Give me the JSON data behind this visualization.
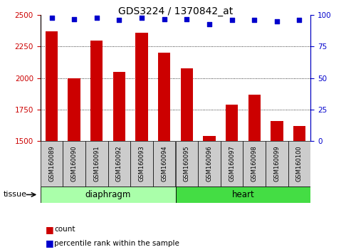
{
  "title": "GDS3224 / 1370842_at",
  "categories": [
    "GSM160089",
    "GSM160090",
    "GSM160091",
    "GSM160092",
    "GSM160093",
    "GSM160094",
    "GSM160095",
    "GSM160096",
    "GSM160097",
    "GSM160098",
    "GSM160099",
    "GSM160100"
  ],
  "bar_values": [
    2370,
    2000,
    2300,
    2050,
    2360,
    2200,
    2080,
    1540,
    1790,
    1870,
    1660,
    1620
  ],
  "percentile_values": [
    98,
    97,
    98,
    96,
    98,
    97,
    97,
    93,
    96,
    96,
    95,
    96
  ],
  "bar_color": "#cc0000",
  "dot_color": "#0000cc",
  "ylim_left": [
    1500,
    2500
  ],
  "ylim_right": [
    0,
    100
  ],
  "yticks_left": [
    1500,
    1750,
    2000,
    2250,
    2500
  ],
  "yticks_right": [
    0,
    25,
    50,
    75,
    100
  ],
  "gridlines_at": [
    1750,
    2000,
    2250
  ],
  "tissue_groups": [
    {
      "label": "diaphragm",
      "start": 0,
      "end": 6,
      "color": "#aaffaa"
    },
    {
      "label": "heart",
      "start": 6,
      "end": 12,
      "color": "#44dd44"
    }
  ],
  "legend_items": [
    {
      "label": "count",
      "color": "#cc0000"
    },
    {
      "label": "percentile rank within the sample",
      "color": "#0000cc"
    }
  ],
  "tissue_label": "tissue",
  "bar_width": 0.55,
  "axis_color_left": "#cc0000",
  "axis_color_right": "#0000cc",
  "xtick_bg": "#cccccc",
  "fig_width": 4.93,
  "fig_height": 3.54,
  "fig_dpi": 100
}
